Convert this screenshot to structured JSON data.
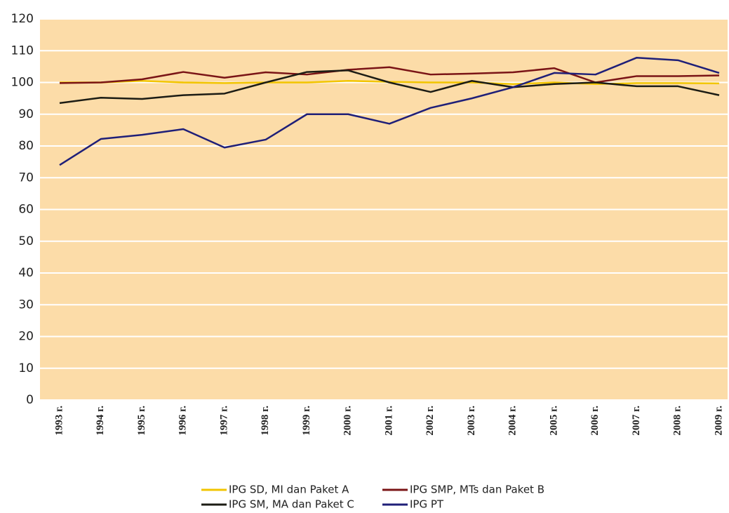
{
  "chart_data": {
    "type": "line",
    "categories": [
      "1993 г.",
      "1994 г.",
      "1995 г.",
      "1996 г.",
      "1997 г.",
      "1998 г.",
      "1999 г.",
      "2000 г.",
      "2001 г.",
      "2002 г.",
      "2003 г.",
      "2004 г.",
      "2005 г.",
      "2006 г.",
      "2007 г.",
      "2008 г.",
      "2009 г."
    ],
    "series": [
      {
        "name": "IPG SD, MI dan Paket A",
        "color": "#f2c500",
        "values": [
          100,
          100,
          100.5,
          100,
          99.8,
          100,
          100,
          100.5,
          100.2,
          100,
          100,
          99.5,
          100,
          99.5,
          99.8,
          99.8,
          99.7
        ]
      },
      {
        "name": "IPG SMP, MTs dan Paket B",
        "color": "#7a1416",
        "values": [
          99.8,
          100,
          101,
          103.3,
          101.5,
          103.2,
          102.5,
          104,
          104.8,
          102.5,
          102.8,
          103.2,
          104.5,
          100,
          102,
          102,
          102.2
        ]
      },
      {
        "name": "IPG SM, MA dan Paket C",
        "color": "#1c1c14",
        "values": [
          93.5,
          95.2,
          94.8,
          96,
          96.5,
          100,
          103.3,
          103.8,
          100,
          97,
          100.5,
          98.5,
          99.5,
          100,
          98.8,
          98.8,
          96
        ]
      },
      {
        "name": "IPG PT",
        "color": "#1f1f78",
        "values": [
          74,
          82.2,
          83.5,
          85.3,
          79.5,
          82,
          90,
          90,
          87,
          92,
          95,
          98.5,
          103,
          102.5,
          107.8,
          107,
          103
        ]
      }
    ],
    "ylim": [
      0,
      120
    ],
    "yticks": [
      0,
      10,
      20,
      30,
      40,
      50,
      60,
      70,
      80,
      90,
      100,
      110,
      120
    ],
    "grid": true,
    "legend": "bottom"
  }
}
